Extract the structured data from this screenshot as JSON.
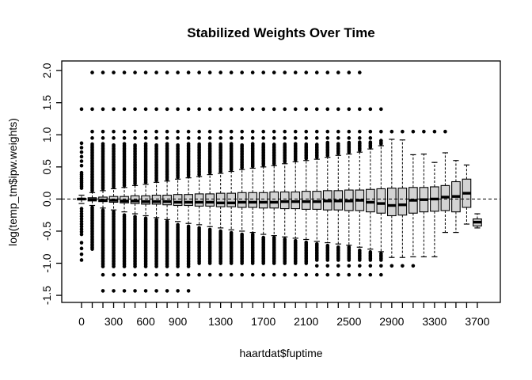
{
  "figure": {
    "background": "#ffffff",
    "foreground": "#000000",
    "box_fill": "#d3d3d3"
  },
  "chart_data": {
    "type": "boxplot",
    "title": "Stabilized Weights Over Time",
    "xlabel": "haartdat$fuptime",
    "ylabel": "log(temp_tm$ipw.weights)",
    "xlim": [
      -185,
      3915
    ],
    "ylim": [
      -1.61,
      2.15
    ],
    "grid": false,
    "reference_line_y": 0,
    "reference_line_style": "dashed",
    "box_spacing": 100,
    "y_tick_labels": [
      {
        "value": 2.0,
        "label": "2.0"
      },
      {
        "value": 1.5,
        "label": "1.5"
      },
      {
        "value": 1.0,
        "label": "1.0"
      },
      {
        "value": 0.5,
        "label": "0.5"
      },
      {
        "value": 0.0,
        "label": "0.0"
      },
      {
        "value": -0.5,
        "label": "-0.5"
      },
      {
        "value": -1.0,
        "label": "-1.0"
      },
      {
        "value": -1.5,
        "label": "-1.5"
      }
    ],
    "x_tick_labels": [
      {
        "value": 0,
        "label": "0"
      },
      {
        "value": 300,
        "label": "300"
      },
      {
        "value": 600,
        "label": "600"
      },
      {
        "value": 900,
        "label": "900"
      },
      {
        "value": 1300,
        "label": "1300"
      },
      {
        "value": 1700,
        "label": "1700"
      },
      {
        "value": 2100,
        "label": "2100"
      },
      {
        "value": 2500,
        "label": "2500"
      },
      {
        "value": 2900,
        "label": "2900"
      },
      {
        "value": 3300,
        "label": "3300"
      },
      {
        "value": 3700,
        "label": "3700"
      }
    ],
    "boxes": [
      {
        "x": 0,
        "med": 0,
        "q1": -0.01,
        "q3": 0.01,
        "lo": -0.07,
        "hi": 0.06,
        "cols": [
          [
            0.17,
            0.43,
            0.03
          ],
          [
            0.52,
            0.88,
            0.07
          ],
          [
            -0.55,
            -0.15,
            0.04
          ],
          [
            -0.95,
            -0.6,
            0.09
          ]
        ],
        "dots": [
          1.4
        ]
      },
      {
        "x": 100,
        "med": -0.01,
        "q1": -0.03,
        "q3": 0.02,
        "lo": -0.1,
        "hi": 0.1,
        "cols": [
          [
            0.13,
            0.86,
            0.025
          ],
          [
            -0.78,
            -0.13,
            0.025
          ]
        ],
        "dots": [
          0.95,
          1.05,
          1.4,
          1.97
        ]
      },
      {
        "x": 200,
        "med": -0.02,
        "q1": -0.04,
        "q3": 0.03,
        "lo": -0.14,
        "hi": 0.13,
        "cols": [
          [
            0.16,
            0.86,
            0.025
          ],
          [
            -1.05,
            -0.17,
            0.025
          ]
        ],
        "dots": [
          0.95,
          1.05,
          1.4,
          1.97,
          -1.18,
          -1.43
        ]
      },
      {
        "x": 300,
        "med": -0.02,
        "q1": -0.05,
        "q3": 0.04,
        "lo": -0.17,
        "hi": 0.16,
        "cols": [
          [
            0.19,
            0.86,
            0.025
          ],
          [
            -1.05,
            -0.2,
            0.025
          ]
        ],
        "dots": [
          0.95,
          1.05,
          1.4,
          1.97,
          -1.18,
          -1.43
        ]
      },
      {
        "x": 400,
        "med": -0.03,
        "q1": -0.06,
        "q3": 0.04,
        "lo": -0.2,
        "hi": 0.18,
        "cols": [
          [
            0.21,
            0.86,
            0.025
          ],
          [
            -1.05,
            -0.23,
            0.025
          ]
        ],
        "dots": [
          0.95,
          1.05,
          1.4,
          1.97,
          -1.18,
          -1.43
        ]
      },
      {
        "x": 500,
        "med": -0.03,
        "q1": -0.07,
        "q3": 0.05,
        "lo": -0.23,
        "hi": 0.21,
        "cols": [
          [
            0.24,
            0.86,
            0.025
          ],
          [
            -1.05,
            -0.26,
            0.025
          ]
        ],
        "dots": [
          0.95,
          1.05,
          1.4,
          1.97,
          -1.18,
          -1.43
        ]
      },
      {
        "x": 600,
        "med": -0.04,
        "q1": -0.08,
        "q3": 0.05,
        "lo": -0.26,
        "hi": 0.23,
        "cols": [
          [
            0.26,
            0.86,
            0.025
          ],
          [
            -1.05,
            -0.29,
            0.025
          ]
        ],
        "dots": [
          0.95,
          1.05,
          1.4,
          1.97,
          -1.18,
          -1.43
        ]
      },
      {
        "x": 700,
        "med": -0.04,
        "q1": -0.08,
        "q3": 0.06,
        "lo": -0.29,
        "hi": 0.26,
        "cols": [
          [
            0.29,
            0.86,
            0.025
          ],
          [
            -1.05,
            -0.32,
            0.025
          ]
        ],
        "dots": [
          0.95,
          1.05,
          1.4,
          1.97,
          -1.18,
          -1.43
        ]
      },
      {
        "x": 800,
        "med": -0.04,
        "q1": -0.09,
        "q3": 0.06,
        "lo": -0.32,
        "hi": 0.28,
        "cols": [
          [
            0.31,
            0.86,
            0.025
          ],
          [
            -1.05,
            -0.35,
            0.025
          ]
        ],
        "dots": [
          0.95,
          1.05,
          1.4,
          1.97,
          -1.18,
          -1.43
        ]
      },
      {
        "x": 900,
        "med": -0.05,
        "q1": -0.1,
        "q3": 0.07,
        "lo": -0.35,
        "hi": 0.31,
        "cols": [
          [
            0.34,
            0.86,
            0.025
          ],
          [
            -1.05,
            -0.38,
            0.025
          ]
        ],
        "dots": [
          0.95,
          1.05,
          1.4,
          1.97,
          -1.18,
          -1.43
        ]
      },
      {
        "x": 1000,
        "med": -0.05,
        "q1": -0.1,
        "q3": 0.07,
        "lo": -0.38,
        "hi": 0.33,
        "cols": [
          [
            0.36,
            0.86,
            0.025
          ],
          [
            -1.05,
            -0.41,
            0.025
          ]
        ],
        "dots": [
          0.95,
          1.05,
          1.4,
          1.97,
          -1.18,
          -1.43
        ]
      },
      {
        "x": 1100,
        "med": -0.05,
        "q1": -0.11,
        "q3": 0.08,
        "lo": -0.4,
        "hi": 0.35,
        "cols": [
          [
            0.38,
            0.86,
            0.025
          ],
          [
            -1.0,
            -0.43,
            0.025
          ]
        ],
        "dots": [
          0.95,
          1.05,
          1.4,
          1.97,
          -1.18
        ]
      },
      {
        "x": 1200,
        "med": -0.05,
        "q1": -0.11,
        "q3": 0.08,
        "lo": -0.43,
        "hi": 0.38,
        "cols": [
          [
            0.41,
            0.86,
            0.025
          ],
          [
            -1.0,
            -0.46,
            0.025
          ]
        ],
        "dots": [
          0.95,
          1.05,
          1.4,
          1.97,
          -1.18
        ]
      },
      {
        "x": 1300,
        "med": -0.06,
        "q1": -0.12,
        "q3": 0.09,
        "lo": -0.45,
        "hi": 0.4,
        "cols": [
          [
            0.43,
            0.86,
            0.025
          ],
          [
            -1.0,
            -0.48,
            0.025
          ]
        ],
        "dots": [
          0.95,
          1.05,
          1.4,
          1.97,
          -1.18
        ]
      },
      {
        "x": 1400,
        "med": -0.06,
        "q1": -0.12,
        "q3": 0.09,
        "lo": -0.48,
        "hi": 0.43,
        "cols": [
          [
            0.46,
            0.86,
            0.025
          ],
          [
            -1.0,
            -0.51,
            0.025
          ]
        ],
        "dots": [
          0.95,
          1.05,
          1.4,
          1.97,
          -1.18
        ]
      },
      {
        "x": 1500,
        "med": -0.05,
        "q1": -0.13,
        "q3": 0.1,
        "lo": -0.5,
        "hi": 0.46,
        "cols": [
          [
            0.49,
            0.86,
            0.025
          ],
          [
            -1.0,
            -0.53,
            0.025
          ]
        ],
        "dots": [
          0.95,
          1.05,
          1.4,
          1.97,
          -1.18
        ]
      },
      {
        "x": 1600,
        "med": -0.05,
        "q1": -0.13,
        "q3": 0.1,
        "lo": -0.52,
        "hi": 0.48,
        "cols": [
          [
            0.51,
            0.86,
            0.025
          ],
          [
            -1.0,
            -0.55,
            0.025
          ]
        ],
        "dots": [
          0.95,
          1.05,
          1.4,
          1.97,
          -1.18
        ]
      },
      {
        "x": 1700,
        "med": -0.05,
        "q1": -0.14,
        "q3": 0.1,
        "lo": -0.55,
        "hi": 0.5,
        "cols": [
          [
            0.53,
            0.86,
            0.025
          ],
          [
            -1.0,
            -0.58,
            0.025
          ]
        ],
        "dots": [
          0.95,
          1.05,
          1.4,
          1.97,
          -1.18
        ]
      },
      {
        "x": 1800,
        "med": -0.05,
        "q1": -0.14,
        "q3": 0.11,
        "lo": -0.57,
        "hi": 0.52,
        "cols": [
          [
            0.55,
            0.86,
            0.025
          ],
          [
            -1.0,
            -0.6,
            0.025
          ]
        ],
        "dots": [
          0.95,
          1.05,
          1.4,
          1.97,
          -1.18
        ]
      },
      {
        "x": 1900,
        "med": -0.04,
        "q1": -0.15,
        "q3": 0.11,
        "lo": -0.59,
        "hi": 0.55,
        "cols": [
          [
            0.58,
            0.86,
            0.025
          ],
          [
            -1.0,
            -0.62,
            0.025
          ]
        ],
        "dots": [
          0.95,
          1.05,
          1.4,
          1.97,
          -1.18
        ]
      },
      {
        "x": 2000,
        "med": -0.04,
        "q1": -0.15,
        "q3": 0.11,
        "lo": -0.61,
        "hi": 0.58,
        "cols": [
          [
            0.61,
            0.86,
            0.025
          ],
          [
            -1.0,
            -0.64,
            0.025
          ]
        ],
        "dots": [
          0.95,
          1.05,
          1.4,
          1.97,
          -1.18
        ]
      },
      {
        "x": 2100,
        "med": -0.04,
        "q1": -0.16,
        "q3": 0.12,
        "lo": -0.63,
        "hi": 0.6,
        "cols": [
          [
            0.63,
            0.86,
            0.025
          ],
          [
            -1.0,
            -0.66,
            0.025
          ]
        ],
        "dots": [
          0.95,
          1.05,
          1.4,
          1.97,
          -1.18
        ]
      },
      {
        "x": 2200,
        "med": -0.04,
        "q1": -0.16,
        "q3": 0.12,
        "lo": -0.66,
        "hi": 0.62,
        "cols": [
          [
            0.65,
            0.86,
            0.025
          ],
          [
            -0.95,
            -0.69,
            0.025
          ]
        ],
        "dots": [
          0.95,
          1.05,
          1.4,
          1.97,
          -1.04,
          -1.18
        ]
      },
      {
        "x": 2300,
        "med": -0.03,
        "q1": -0.17,
        "q3": 0.13,
        "lo": -0.68,
        "hi": 0.65,
        "cols": [
          [
            0.68,
            0.88,
            0.025
          ],
          [
            -0.95,
            -0.71,
            0.025
          ]
        ],
        "dots": [
          0.95,
          1.05,
          1.4,
          1.97,
          -1.04,
          -1.18
        ]
      },
      {
        "x": 2400,
        "med": -0.03,
        "q1": -0.17,
        "q3": 0.13,
        "lo": -0.7,
        "hi": 0.68,
        "cols": [
          [
            0.71,
            0.88,
            0.025
          ],
          [
            -0.95,
            -0.73,
            0.025
          ]
        ],
        "dots": [
          0.95,
          1.05,
          1.4,
          1.97,
          -1.04,
          -1.18
        ]
      },
      {
        "x": 2500,
        "med": -0.03,
        "q1": -0.18,
        "q3": 0.14,
        "lo": -0.72,
        "hi": 0.7,
        "cols": [
          [
            0.73,
            0.9,
            0.025
          ],
          [
            -0.95,
            -0.75,
            0.025
          ]
        ],
        "dots": [
          0.95,
          1.05,
          1.4,
          1.97,
          -1.04,
          -1.18
        ]
      },
      {
        "x": 2600,
        "med": -0.02,
        "q1": -0.18,
        "q3": 0.14,
        "lo": -0.75,
        "hi": 0.73,
        "cols": [
          [
            0.76,
            0.9,
            0.025
          ],
          [
            -0.95,
            -0.78,
            0.025
          ]
        ],
        "dots": [
          0.95,
          1.05,
          1.4,
          1.97,
          -1.04,
          -1.18
        ]
      },
      {
        "x": 2700,
        "med": -0.05,
        "q1": -0.2,
        "q3": 0.15,
        "lo": -0.78,
        "hi": 0.78,
        "cols": [
          [
            0.81,
            0.9,
            0.025
          ],
          [
            -0.95,
            -0.81,
            0.025
          ]
        ],
        "dots": [
          0.95,
          1.05,
          1.4,
          -1.04,
          -1.18
        ]
      },
      {
        "x": 2800,
        "med": -0.07,
        "q1": -0.22,
        "q3": 0.16,
        "lo": -0.82,
        "hi": 0.83,
        "cols": [
          [
            0.86,
            0.92,
            0.025
          ],
          [
            -0.95,
            -0.85,
            0.025
          ]
        ],
        "dots": [
          1.05,
          1.4,
          -1.04,
          -1.18
        ]
      },
      {
        "x": 2900,
        "med": -0.1,
        "q1": -0.26,
        "q3": 0.17,
        "lo": -0.91,
        "hi": 0.93,
        "cols": [],
        "dots": [
          1.05,
          -1.04
        ]
      },
      {
        "x": 3000,
        "med": -0.09,
        "q1": -0.25,
        "q3": 0.17,
        "lo": -0.91,
        "hi": 0.92,
        "cols": [],
        "dots": [
          1.05,
          -1.04
        ]
      },
      {
        "x": 3100,
        "med": -0.02,
        "q1": -0.22,
        "q3": 0.18,
        "lo": -0.9,
        "hi": 0.69,
        "cols": [],
        "dots": [
          1.05,
          -1.04
        ]
      },
      {
        "x": 3200,
        "med": -0.01,
        "q1": -0.2,
        "q3": 0.18,
        "lo": -0.9,
        "hi": 0.7,
        "cols": [],
        "dots": [
          1.05
        ]
      },
      {
        "x": 3300,
        "med": 0,
        "q1": -0.19,
        "q3": 0.19,
        "lo": -0.9,
        "hi": 0.57,
        "cols": [],
        "dots": [
          1.05
        ]
      },
      {
        "x": 3400,
        "med": 0.03,
        "q1": -0.18,
        "q3": 0.21,
        "lo": -0.52,
        "hi": 0.72,
        "cols": [],
        "dots": [
          1.05
        ]
      },
      {
        "x": 3500,
        "med": 0.04,
        "q1": -0.2,
        "q3": 0.27,
        "lo": -0.52,
        "hi": 0.6,
        "cols": [],
        "dots": []
      },
      {
        "x": 3600,
        "med": 0.09,
        "q1": -0.13,
        "q3": 0.31,
        "lo": -0.39,
        "hi": 0.53,
        "cols": [],
        "dots": []
      },
      {
        "x": 3700,
        "med": -0.36,
        "q1": -0.42,
        "q3": -0.31,
        "lo": -0.45,
        "hi": -0.23,
        "cols": [],
        "dots": []
      }
    ]
  }
}
